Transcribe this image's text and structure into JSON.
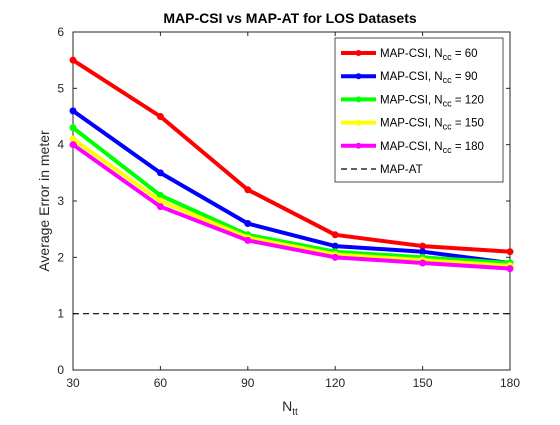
{
  "chart_data": {
    "type": "line",
    "title": "MAP-CSI vs MAP-AT for LOS Datasets",
    "xlabel": {
      "base": "N",
      "sub": "tt"
    },
    "ylabel": "Average Error in meter",
    "x": [
      30,
      60,
      90,
      120,
      150,
      180
    ],
    "xlim": [
      30,
      180
    ],
    "ylim": [
      0,
      6
    ],
    "x_ticks": [
      "30",
      "60",
      "90",
      "120",
      "150",
      "180"
    ],
    "y_ticks": [
      "0",
      "1",
      "2",
      "3",
      "4",
      "5",
      "6"
    ],
    "grid": false,
    "legend_position": "top-right",
    "series": [
      {
        "name": "MAP-CSI, N_cc = 60",
        "legend": {
          "prefix": "MAP-CSI, N",
          "sub": "cc",
          "suffix": " = 60"
        },
        "color": "#ff0000",
        "values": [
          5.5,
          4.5,
          3.2,
          2.4,
          2.2,
          2.1
        ]
      },
      {
        "name": "MAP-CSI, N_cc = 90",
        "legend": {
          "prefix": "MAP-CSI, N",
          "sub": "cc",
          "suffix": " = 90"
        },
        "color": "#0000ff",
        "values": [
          4.6,
          3.5,
          2.6,
          2.2,
          2.1,
          1.9
        ]
      },
      {
        "name": "MAP-CSI, N_cc = 120",
        "legend": {
          "prefix": "MAP-CSI, N",
          "sub": "cc",
          "suffix": " = 120"
        },
        "color": "#00ff00",
        "values": [
          4.3,
          3.1,
          2.4,
          2.1,
          2.0,
          1.9
        ]
      },
      {
        "name": "MAP-CSI, N_cc = 150",
        "legend": {
          "prefix": "MAP-CSI, N",
          "sub": "cc",
          "suffix": " = 150"
        },
        "color": "#ffff00",
        "values": [
          4.1,
          3.0,
          2.35,
          2.05,
          1.95,
          1.85
        ]
      },
      {
        "name": "MAP-CSI, N_cc = 180",
        "legend": {
          "prefix": "MAP-CSI, N",
          "sub": "cc",
          "suffix": " = 180"
        },
        "color": "#ff00ff",
        "values": [
          4.0,
          2.9,
          2.3,
          2.0,
          1.9,
          1.8
        ]
      },
      {
        "name": "MAP-AT",
        "legend": {
          "prefix": "MAP-AT",
          "sub": "",
          "suffix": ""
        },
        "color": "#000000",
        "dashed": true,
        "values": [
          1,
          1,
          1,
          1,
          1,
          1
        ]
      }
    ]
  }
}
